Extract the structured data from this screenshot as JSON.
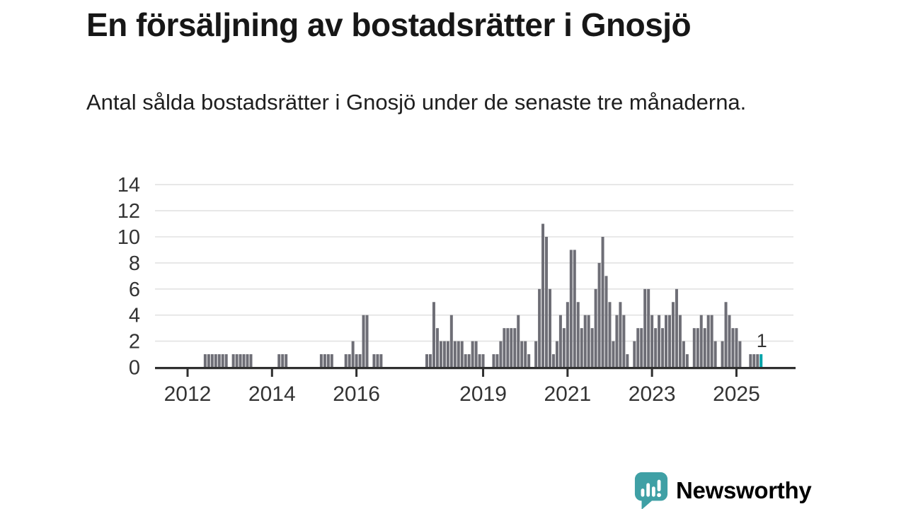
{
  "header": {
    "title": "En försäljning av bostadsrätter i Gnosjö",
    "subtitle": "Antal sålda bostadsrätter i Gnosjö under de senaste tre månaderna."
  },
  "colors": {
    "bar": "#6e6e76",
    "highlight": "#00a3a9",
    "brand": "#3fa0a5",
    "axis": "#2f2f2f",
    "grid": "#e2e2e2",
    "tick_text": "#333333"
  },
  "chart_data": {
    "type": "bar",
    "title": "En försäljning av bostadsrätter i Gnosjö",
    "xlabel": "",
    "ylabel": "",
    "ylim": [
      0,
      14
    ],
    "yticks": [
      0,
      2,
      4,
      6,
      8,
      10,
      12,
      14
    ],
    "xticks": [
      "2012",
      "2014",
      "2016",
      "2019",
      "2021",
      "2023",
      "2025"
    ],
    "grid": true,
    "legend": "none",
    "frequency": "monthly",
    "unit": "sålda bostadsrätter (rullande 3 mån)",
    "last_value_label": "1",
    "highlight_last": true,
    "series_by_year": [
      {
        "year": 2011,
        "start_month": 4,
        "values": [
          0,
          0,
          0,
          0,
          0,
          0,
          0,
          0,
          0
        ]
      },
      {
        "year": 2012,
        "start_month": 1,
        "values": [
          0,
          0,
          0,
          0,
          0,
          1,
          1,
          1,
          1,
          1,
          1,
          1
        ]
      },
      {
        "year": 2013,
        "start_month": 1,
        "values": [
          0,
          1,
          1,
          1,
          1,
          1,
          1,
          0,
          0,
          0,
          0,
          0
        ]
      },
      {
        "year": 2014,
        "start_month": 1,
        "values": [
          0,
          0,
          1,
          1,
          1,
          0,
          0,
          0,
          0,
          0,
          0,
          0
        ]
      },
      {
        "year": 2015,
        "start_month": 1,
        "values": [
          0,
          0,
          1,
          1,
          1,
          1,
          0,
          0,
          0,
          1,
          1,
          2
        ]
      },
      {
        "year": 2016,
        "start_month": 1,
        "values": [
          1,
          1,
          4,
          4,
          0,
          1,
          1,
          1,
          0,
          0,
          0,
          0
        ]
      },
      {
        "year": 2017,
        "start_month": 1,
        "values": [
          0,
          0,
          0,
          0,
          0,
          0,
          0,
          0,
          1,
          1,
          5,
          3
        ]
      },
      {
        "year": 2018,
        "start_month": 1,
        "values": [
          2,
          2,
          2,
          4,
          2,
          2,
          2,
          1,
          1,
          2,
          2,
          1
        ]
      },
      {
        "year": 2019,
        "start_month": 1,
        "values": [
          1,
          0,
          0,
          1,
          1,
          2,
          3,
          3,
          3,
          3,
          4,
          2
        ]
      },
      {
        "year": 2020,
        "start_month": 1,
        "values": [
          2,
          1,
          0,
          2,
          6,
          11,
          10,
          6,
          1,
          2,
          4,
          3
        ]
      },
      {
        "year": 2021,
        "start_month": 1,
        "values": [
          5,
          9,
          9,
          5,
          3,
          4,
          4,
          3,
          6,
          8,
          10,
          7
        ]
      },
      {
        "year": 2022,
        "start_month": 1,
        "values": [
          5,
          2,
          4,
          5,
          4,
          1,
          0,
          2,
          3,
          3,
          6,
          6
        ]
      },
      {
        "year": 2023,
        "start_month": 1,
        "values": [
          4,
          3,
          4,
          3,
          4,
          4,
          5,
          6,
          4,
          2,
          1,
          0
        ]
      },
      {
        "year": 2024,
        "start_month": 1,
        "values": [
          3,
          3,
          4,
          3,
          4,
          4,
          2,
          0,
          2,
          5,
          4,
          3
        ]
      },
      {
        "year": 2025,
        "start_month": 1,
        "values": [
          3,
          2,
          0,
          0,
          1,
          1,
          1,
          1
        ]
      }
    ]
  },
  "footer": {
    "brand": "Newsworthy"
  },
  "icons": {
    "logo": "newsworthy-speech-bubble-chart-icon"
  }
}
